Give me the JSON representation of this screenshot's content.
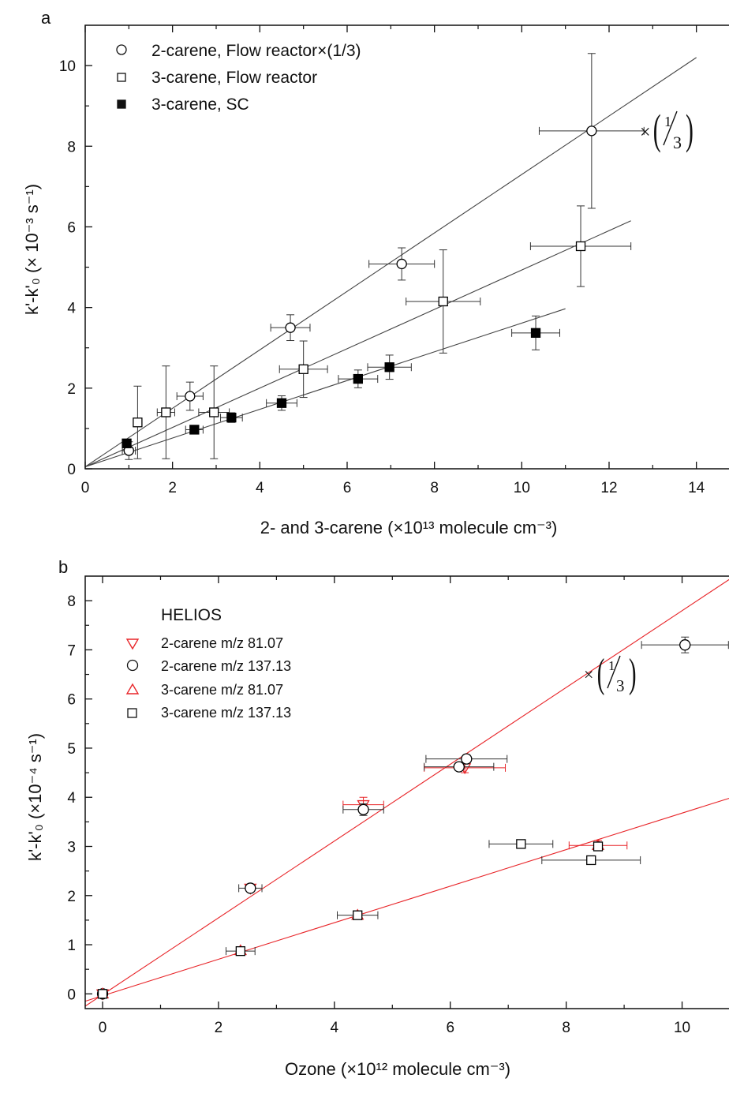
{
  "chart_data": [
    {
      "panel_label": "a",
      "type": "scatter",
      "xlabel": "2- and 3-carene (×10¹³ molecule cm⁻³)",
      "ylabel": "k'-k'₀ (× 10⁻³ s⁻¹)",
      "xlim": [
        0,
        15
      ],
      "ylim": [
        0,
        11
      ],
      "xticks": [
        "0",
        "2",
        "4",
        "6",
        "8",
        "10",
        "12",
        "14"
      ],
      "yticks": [
        "0",
        "2",
        "4",
        "6",
        "8",
        "10"
      ],
      "legend_position": "top-left",
      "annotation": "×(1/3)",
      "series": [
        {
          "name": "2-carene, Flow reactor×(1/3)",
          "marker": "open-circle",
          "color": "#000000",
          "points": [
            {
              "x": 1.0,
              "y": 0.45,
              "xerr": 0.15,
              "yerr": 0.22
            },
            {
              "x": 2.4,
              "y": 1.8,
              "xerr": 0.3,
              "yerr": 0.35
            },
            {
              "x": 4.7,
              "y": 3.5,
              "xerr": 0.45,
              "yerr": 0.32
            },
            {
              "x": 7.25,
              "y": 5.08,
              "xerr": 0.75,
              "yerr": 0.4
            },
            {
              "x": 11.6,
              "y": 8.38,
              "xerr": 1.2,
              "yerr": 1.92
            }
          ],
          "fit": {
            "x": [
              0,
              14.0
            ],
            "y": [
              0.05,
              10.2
            ]
          }
        },
        {
          "name": "3-carene, Flow reactor",
          "marker": "open-square",
          "color": "#000000",
          "points": [
            {
              "x": 1.2,
              "y": 1.15,
              "xerr": 0.0,
              "yerr": 0.9
            },
            {
              "x": 1.85,
              "y": 1.4,
              "xerr": 0.2,
              "yerr": 1.15
            },
            {
              "x": 2.95,
              "y": 1.4,
              "xerr": 0.35,
              "yerr": 1.15
            },
            {
              "x": 5.0,
              "y": 2.47,
              "xerr": 0.55,
              "yerr": 0.7
            },
            {
              "x": 8.2,
              "y": 4.15,
              "xerr": 0.85,
              "yerr": 1.28
            },
            {
              "x": 11.35,
              "y": 5.52,
              "xerr": 1.15,
              "yerr": 1.0
            }
          ],
          "fit": {
            "x": [
              0,
              12.5
            ],
            "y": [
              0.05,
              6.15
            ]
          }
        },
        {
          "name": "3-carene, SC",
          "marker": "filled-square",
          "color": "#000000",
          "points": [
            {
              "x": 0.95,
              "y": 0.63,
              "xerr": 0.0,
              "yerr": 0.1
            },
            {
              "x": 2.5,
              "y": 0.97,
              "xerr": 0.2,
              "yerr": 0.08
            },
            {
              "x": 3.35,
              "y": 1.27,
              "xerr": 0.25,
              "yerr": 0.12
            },
            {
              "x": 4.5,
              "y": 1.63,
              "xerr": 0.35,
              "yerr": 0.18
            },
            {
              "x": 6.25,
              "y": 2.23,
              "xerr": 0.45,
              "yerr": 0.22
            },
            {
              "x": 6.97,
              "y": 2.52,
              "xerr": 0.5,
              "yerr": 0.3
            },
            {
              "x": 10.32,
              "y": 3.37,
              "xerr": 0.55,
              "yerr": 0.42
            }
          ],
          "fit": {
            "x": [
              0,
              11.0
            ],
            "y": [
              0.05,
              3.97
            ]
          }
        }
      ]
    },
    {
      "panel_label": "b",
      "type": "scatter",
      "xlabel": "Ozone (×10¹² molecule cm⁻³)",
      "ylabel": "k'-k'₀ (×10⁻⁴ s⁻¹)",
      "xlim": [
        -0.3,
        11.0
      ],
      "ylim": [
        -0.3,
        8.5
      ],
      "xticks": [
        "0",
        "2",
        "4",
        "6",
        "8",
        "10"
      ],
      "yticks": [
        "0",
        "1",
        "2",
        "3",
        "4",
        "5",
        "6",
        "7",
        "8"
      ],
      "legend_title": "HELIOS",
      "legend_position": "top-left",
      "annotation": "×(1/3)",
      "series": [
        {
          "name": "2-carene m/z 81.07",
          "marker": "open-triangle-down",
          "color": "#e8262a",
          "points": [
            {
              "x": 0.0,
              "y": 0.0,
              "xerr": 0.0,
              "yerr": 0.0
            },
            {
              "x": 2.55,
              "y": 2.15,
              "xerr": 0.0,
              "yerr": 0.0
            },
            {
              "x": 4.5,
              "y": 3.85,
              "xerr": 0.35,
              "yerr": 0.15
            },
            {
              "x": 6.25,
              "y": 4.6,
              "xerr": 0.7,
              "yerr": 0.1
            }
          ]
        },
        {
          "name": "2-carene m/z 137.13",
          "marker": "open-circle",
          "color": "#000000",
          "points": [
            {
              "x": 0.0,
              "y": 0.0,
              "xerr": 0.0,
              "yerr": 0.0
            },
            {
              "x": 2.55,
              "y": 2.15,
              "xerr": 0.2,
              "yerr": 0.07
            },
            {
              "x": 4.5,
              "y": 3.75,
              "xerr": 0.35,
              "yerr": 0.12
            },
            {
              "x": 6.15,
              "y": 4.62,
              "xerr": 0.6,
              "yerr": 0.08
            },
            {
              "x": 6.28,
              "y": 4.78,
              "xerr": 0.7,
              "yerr": 0.08
            },
            {
              "x": 10.05,
              "y": 7.1,
              "xerr": 0.75,
              "yerr": 0.16
            }
          ]
        },
        {
          "name": "3-carene m/z 81.07",
          "marker": "open-triangle-up",
          "color": "#e8262a",
          "points": [
            {
              "x": 0.0,
              "y": 0.0,
              "xerr": 0.0,
              "yerr": 0.0
            },
            {
              "x": 2.38,
              "y": 0.88,
              "xerr": 0.0,
              "yerr": 0.0
            },
            {
              "x": 4.4,
              "y": 1.6,
              "xerr": 0.0,
              "yerr": 0.0
            },
            {
              "x": 8.55,
              "y": 3.02,
              "xerr": 0.5,
              "yerr": 0.1
            }
          ]
        },
        {
          "name": "3-carene m/z 137.13",
          "marker": "open-square",
          "color": "#000000",
          "points": [
            {
              "x": 0.0,
              "y": 0.0,
              "xerr": 0.0,
              "yerr": 0.0
            },
            {
              "x": 2.38,
              "y": 0.87,
              "xerr": 0.25,
              "yerr": 0.05
            },
            {
              "x": 4.4,
              "y": 1.6,
              "xerr": 0.35,
              "yerr": 0.05
            },
            {
              "x": 7.22,
              "y": 3.05,
              "xerr": 0.55,
              "yerr": 0.05
            },
            {
              "x": 8.43,
              "y": 2.72,
              "xerr": 0.85,
              "yerr": 0.05
            },
            {
              "x": 8.55,
              "y": 3.0,
              "xerr": 0.0,
              "yerr": 0.05
            }
          ]
        }
      ],
      "fits": [
        {
          "color": "#e8262a",
          "x": [
            -0.3,
            10.9
          ],
          "y": [
            -0.25,
            8.5
          ]
        },
        {
          "color": "#e8262a",
          "x": [
            -0.3,
            11.0
          ],
          "y": [
            -0.15,
            4.05
          ]
        }
      ]
    }
  ]
}
